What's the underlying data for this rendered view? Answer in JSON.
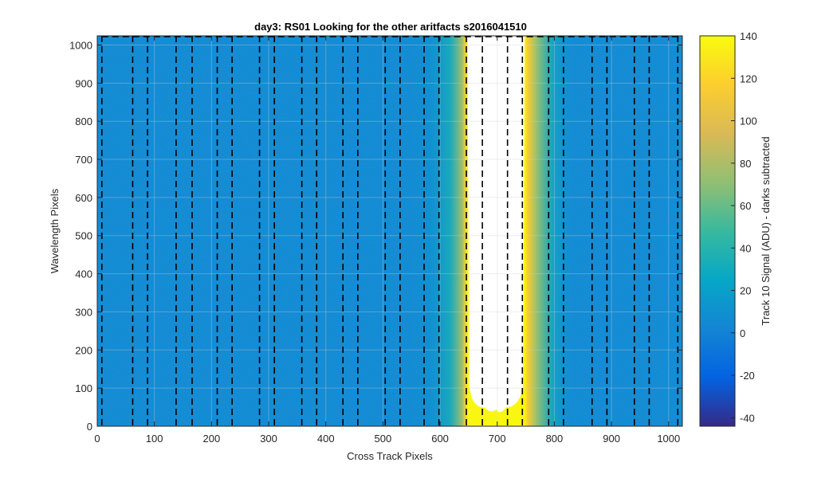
{
  "chart_data": {
    "type": "heatmap",
    "title": "day3: RS01  Looking for the other aritfacts  s2016041510",
    "xlabel": "Cross Track Pixels",
    "ylabel": "Wavelength Pixels",
    "xlim": [
      0,
      1024
    ],
    "ylim": [
      0,
      1024
    ],
    "xticks": [
      0,
      100,
      200,
      300,
      400,
      500,
      600,
      700,
      800,
      900,
      1000
    ],
    "yticks": [
      0,
      100,
      200,
      300,
      400,
      500,
      600,
      700,
      800,
      900,
      1000
    ],
    "grid": true,
    "colorbar": {
      "label": "Track 10 Signal (ADU) - darks subtracted",
      "clim": [
        -44,
        140
      ],
      "ticks": [
        -40,
        -20,
        0,
        20,
        40,
        60,
        80,
        100,
        120,
        140
      ],
      "colormap": "parula",
      "stops": [
        "#352a87",
        "#0363e1",
        "#1485d4",
        "#06a7c6",
        "#38b99e",
        "#92bf73",
        "#d9ba56",
        "#fcce2e",
        "#f9fb0e"
      ]
    },
    "background_signal_adu": 5,
    "saturated_region": {
      "x_range": [
        648,
        748
      ],
      "y_range": [
        40,
        1024
      ],
      "above_clim_color": "#ffffff"
    },
    "dashed_track_boundaries": [
      8,
      62,
      88,
      138,
      166,
      210,
      236,
      284,
      310,
      358,
      384,
      430,
      456,
      504,
      530,
      572,
      598,
      646,
      674,
      718,
      744,
      790,
      816,
      866,
      892,
      940,
      966,
      1016
    ],
    "dashed_frame_y": 1024,
    "boundary_color": "#000000"
  }
}
